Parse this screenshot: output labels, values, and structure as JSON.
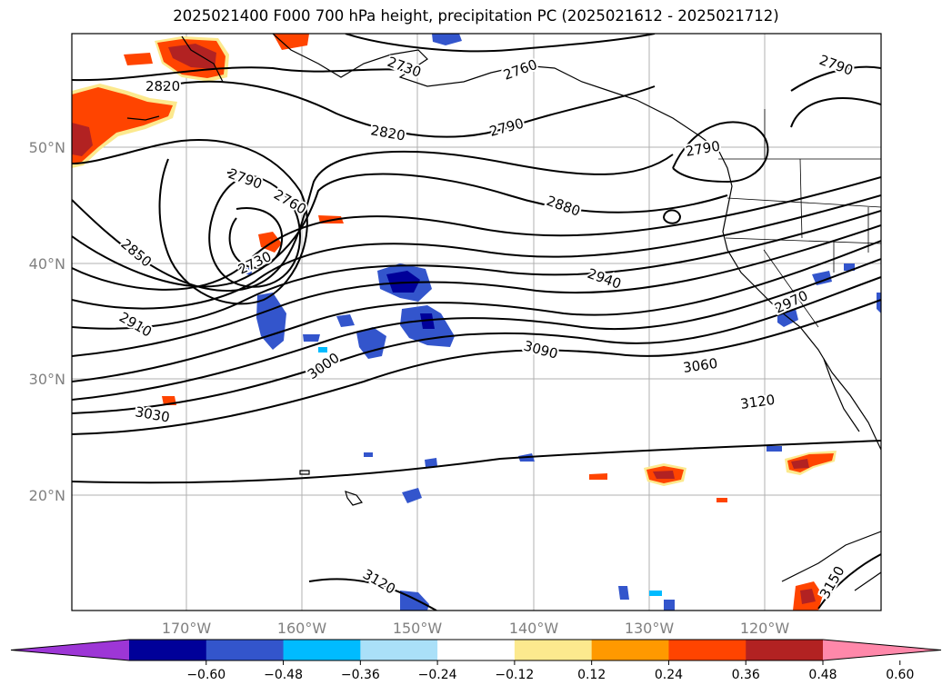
{
  "title": "2025021400 F000 700 hPa height, precipitation PC (2025021612 - 2025021712)",
  "map": {
    "lat_labels": [
      "50°N",
      "40°N",
      "30°N",
      "20°N"
    ],
    "lon_labels": [
      "170°W",
      "160°W",
      "150°W",
      "140°W",
      "130°W",
      "120°W"
    ],
    "gridlines": true,
    "contour_color": "#000000",
    "contour_labels": [
      "2820",
      "2730",
      "2760",
      "2790",
      "2790",
      "2820",
      "2790",
      "2760",
      "2790",
      "2850",
      "2730",
      "2880",
      "2940",
      "2910",
      "3000",
      "3090",
      "3060",
      "2970",
      "3030",
      "3120",
      "3120",
      "3150"
    ]
  },
  "colorbar": {
    "tick_labels": [
      "−0.60",
      "−0.48",
      "−0.36",
      "−0.24",
      "−0.12",
      "0.12",
      "0.24",
      "0.36",
      "0.48",
      "0.60"
    ],
    "colors": [
      "#9d36d6",
      "#000099",
      "#3355cc",
      "#00bbff",
      "#aae0f8",
      "#ffffff",
      "#fce98e",
      "#ff9900",
      "#ff4400",
      "#b22222",
      "#ff88aa"
    ]
  }
}
